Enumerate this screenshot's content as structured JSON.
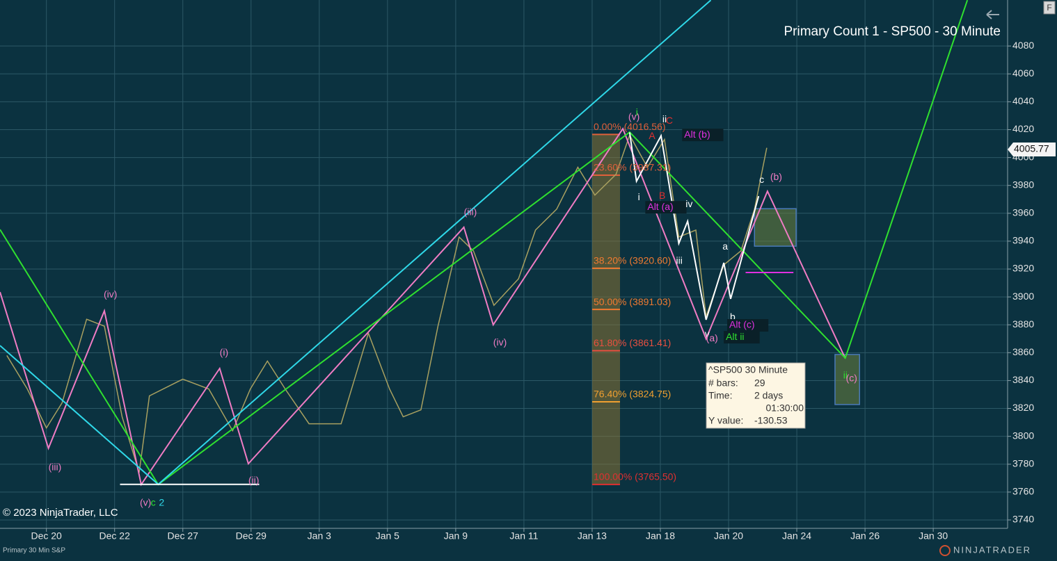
{
  "chart_data": {
    "type": "line",
    "title": "Primary Count 1 - SP500 - 30 Minute",
    "copyright": "© 2023 NinjaTrader, LLC",
    "footer_left": "Primary 30 Min S&P",
    "footer_brand": "NINJATRADER",
    "ui_button": "F",
    "last_price": 4005.77,
    "ylim": [
      3734,
      4113
    ],
    "yticks": [
      3740,
      3760,
      3780,
      3800,
      3820,
      3840,
      3860,
      3880,
      3900,
      3920,
      3940,
      3960,
      3980,
      4000,
      4020,
      4040,
      4060,
      4080
    ],
    "xlim": [
      -0.68,
      14.09
    ],
    "xticks": [
      {
        "value": 0,
        "label": "Dec 20"
      },
      {
        "value": 1,
        "label": "Dec 22"
      },
      {
        "value": 2,
        "label": "Dec 27"
      },
      {
        "value": 3,
        "label": "Dec 29"
      },
      {
        "value": 4,
        "label": "Jan 3"
      },
      {
        "value": 5,
        "label": "Jan 5"
      },
      {
        "value": 6,
        "label": "Jan 9"
      },
      {
        "value": 7,
        "label": "Jan 11"
      },
      {
        "value": 8,
        "label": "Jan 13"
      },
      {
        "value": 9,
        "label": "Jan 18"
      },
      {
        "value": 10,
        "label": "Jan 20"
      },
      {
        "value": 11,
        "label": "Jan 24"
      },
      {
        "value": 12,
        "label": "Jan 26"
      },
      {
        "value": 13,
        "label": "Jan 30"
      }
    ],
    "grid": true,
    "series": [
      {
        "color": "#a8a060",
        "x": [
          -0.58,
          -0.28,
          0,
          0.23,
          0.59,
          0.85,
          1.11,
          1.36,
          1.51,
          2.0,
          2.38,
          2.73,
          2.99,
          3.24,
          3.5,
          3.85,
          4.32,
          4.72,
          5.03,
          5.23,
          5.49,
          5.74,
          6.05,
          6.26,
          6.56,
          6.92,
          7.17,
          7.48,
          7.79,
          8.04,
          8.35,
          8.55,
          8.81,
          9.06,
          9.27,
          9.52,
          9.67,
          9.93,
          10.18,
          10.38,
          10.56
        ],
        "values": [
          3858,
          3834,
          3806,
          3824,
          3884,
          3879,
          3814,
          3774,
          3829,
          3841,
          3834,
          3804,
          3834,
          3854,
          3834,
          3809,
          3809,
          3874,
          3834,
          3814,
          3819,
          3879,
          3943,
          3933,
          3894,
          3913,
          3948,
          3963,
          3993,
          3973,
          3988,
          4016,
          3993,
          4013,
          3943,
          3948,
          3886,
          3923,
          3933,
          3963,
          4007
        ]
      },
      {
        "color": "#f07cc4",
        "x": [
          -0.68,
          0.03,
          0.85,
          1.39,
          2.54,
          2.96,
          6.12,
          6.55,
          8.45,
          9.67,
          10.57,
          11.71
        ],
        "values": [
          3903.5,
          3791.4,
          3890,
          3765.4,
          3848.7,
          3780.4,
          3950,
          3880,
          4020.7,
          3870,
          3975.8,
          3856
        ]
      },
      {
        "color": "#2fe02f",
        "x": [
          -0.68,
          1.64,
          8.55,
          11.71,
          13.5
        ],
        "values": [
          3948.4,
          3765.4,
          4018.2,
          3856.2,
          4112.9
        ]
      },
      {
        "color": "#2fd8e8",
        "x": [
          -0.68,
          1.64,
          9.74
        ],
        "values": [
          3865.1,
          3765.5,
          4112.9
        ]
      },
      {
        "color": "#ffffff",
        "x": [
          8.55,
          8.65,
          9.01,
          9.27,
          9.4,
          9.67,
          9.93,
          10.03,
          10.44
        ],
        "values": [
          4018,
          3983,
          4015.6,
          3938.4,
          3954.3,
          3883.6,
          3924.5,
          3898.6,
          3972.3
        ]
      },
      {
        "color": "#ffffff",
        "x": [
          1.08,
          3.12
        ],
        "values": [
          3765.5,
          3765.5
        ]
      },
      {
        "color": "#e030e0",
        "x": [
          10.25,
          10.95
        ],
        "values": [
          3917.5,
          3917.5
        ]
      }
    ],
    "fib_levels": [
      {
        "label": "0.00% (4016.56)",
        "value": 4016.56,
        "color": "#e0603a"
      },
      {
        "label": "23.60% (3987.31)",
        "value": 3987.31,
        "color": "#e0603a"
      },
      {
        "label": "38.20% (3920.60)",
        "value": 3920.6,
        "color": "#f07a30"
      },
      {
        "label": "50.00% (3891.03)",
        "value": 3891.03,
        "color": "#f07a30"
      },
      {
        "label": "61.80% (3861.41)",
        "value": 3861.41,
        "color": "#e85040"
      },
      {
        "label": "76.40% (3824.75)",
        "value": 3824.75,
        "color": "#f0a030"
      },
      {
        "label": "100.00% (3765.50)",
        "value": 3765.5,
        "color": "#e03030"
      }
    ],
    "zones": [
      {
        "x": [
          10.38,
          10.99
        ],
        "values": [
          3963.3,
          3936.4
        ]
      },
      {
        "x": [
          11.56,
          11.92
        ],
        "values": [
          3858.7,
          3822.8
        ]
      }
    ],
    "annotations": [
      {
        "text": "(iv)",
        "x": 0.84,
        "y": 3901.5,
        "color": "#f07cc4"
      },
      {
        "text": "(iii)",
        "x": 0.03,
        "y": 3777.4,
        "color": "#f07cc4"
      },
      {
        "text": "(v)",
        "x": 1.37,
        "y": 3752,
        "color": "#f07cc4"
      },
      {
        "text": "c",
        "x": 1.53,
        "y": 3752,
        "color": "#2fe02f"
      },
      {
        "text": "2",
        "x": 1.65,
        "y": 3752,
        "color": "#2fd8e8"
      },
      {
        "text": "(i)",
        "x": 2.54,
        "y": 3859.7,
        "color": "#f07cc4"
      },
      {
        "text": "(ii)",
        "x": 2.96,
        "y": 3768,
        "color": "#f07cc4"
      },
      {
        "text": "(iii)",
        "x": 6.12,
        "y": 3960.4,
        "color": "#f07cc4"
      },
      {
        "text": "(iv)",
        "x": 6.55,
        "y": 3867.1,
        "color": "#f07cc4"
      },
      {
        "text": "(v)",
        "x": 8.53,
        "y": 4028.7,
        "color": "#f07cc4"
      },
      {
        "text": "i",
        "x": 8.64,
        "y": 4032.1,
        "color": "#2fe02f"
      },
      {
        "text": "ii",
        "x": 9.03,
        "y": 4027.2,
        "color": "#ffffff"
      },
      {
        "text": "C",
        "x": 9.08,
        "y": 4026.2,
        "color": "#e03030"
      },
      {
        "text": "A",
        "x": 8.83,
        "y": 4015.2,
        "color": "#e03030"
      },
      {
        "text": "Alt (b)",
        "x": 9.35,
        "y": 4016.2,
        "color": "#e030e0"
      },
      {
        "text": "i",
        "x": 8.67,
        "y": 3971.3,
        "color": "#ffffff"
      },
      {
        "text": "Alt (a)",
        "x": 8.81,
        "y": 3964.3,
        "color": "#e030e0"
      },
      {
        "text": "B",
        "x": 8.98,
        "y": 3972.3,
        "color": "#e03030"
      },
      {
        "text": "iv",
        "x": 9.37,
        "y": 3966.3,
        "color": "#ffffff"
      },
      {
        "text": "iii",
        "x": 9.23,
        "y": 3925.5,
        "color": "#ffffff"
      },
      {
        "text": "a",
        "x": 9.91,
        "y": 3935.9,
        "color": "#ffffff"
      },
      {
        "text": "b",
        "x": 10.02,
        "y": 3885.1,
        "color": "#ffffff"
      },
      {
        "text": "v",
        "x": 9.65,
        "y": 3873.1,
        "color": "#ffffff"
      },
      {
        "text": "(a)",
        "x": 9.67,
        "y": 3870.1,
        "color": "#f07cc4"
      },
      {
        "text": "Alt (c)",
        "x": 10.01,
        "y": 3879.6,
        "color": "#e030e0"
      },
      {
        "text": "Alt ii",
        "x": 9.96,
        "y": 3871.1,
        "color": "#2fe02f"
      },
      {
        "text": "c",
        "x": 10.45,
        "y": 3983.8,
        "color": "#ffffff"
      },
      {
        "text": "(b)",
        "x": 10.61,
        "y": 3985.8,
        "color": "#f07cc4"
      },
      {
        "text": "ii",
        "x": 11.68,
        "y": 3843.2,
        "color": "#2fe02f"
      },
      {
        "text": "(c)",
        "x": 11.72,
        "y": 3841.2,
        "color": "#f07cc4"
      }
    ],
    "tooltip": {
      "title": "^SP500 30 Minute",
      "bars_label": "# bars:",
      "bars": 29,
      "time_label": "Time:",
      "time": "2 days",
      "time2": "01:30:00",
      "y_label": "Y value:",
      "y_value": -130.53
    }
  }
}
